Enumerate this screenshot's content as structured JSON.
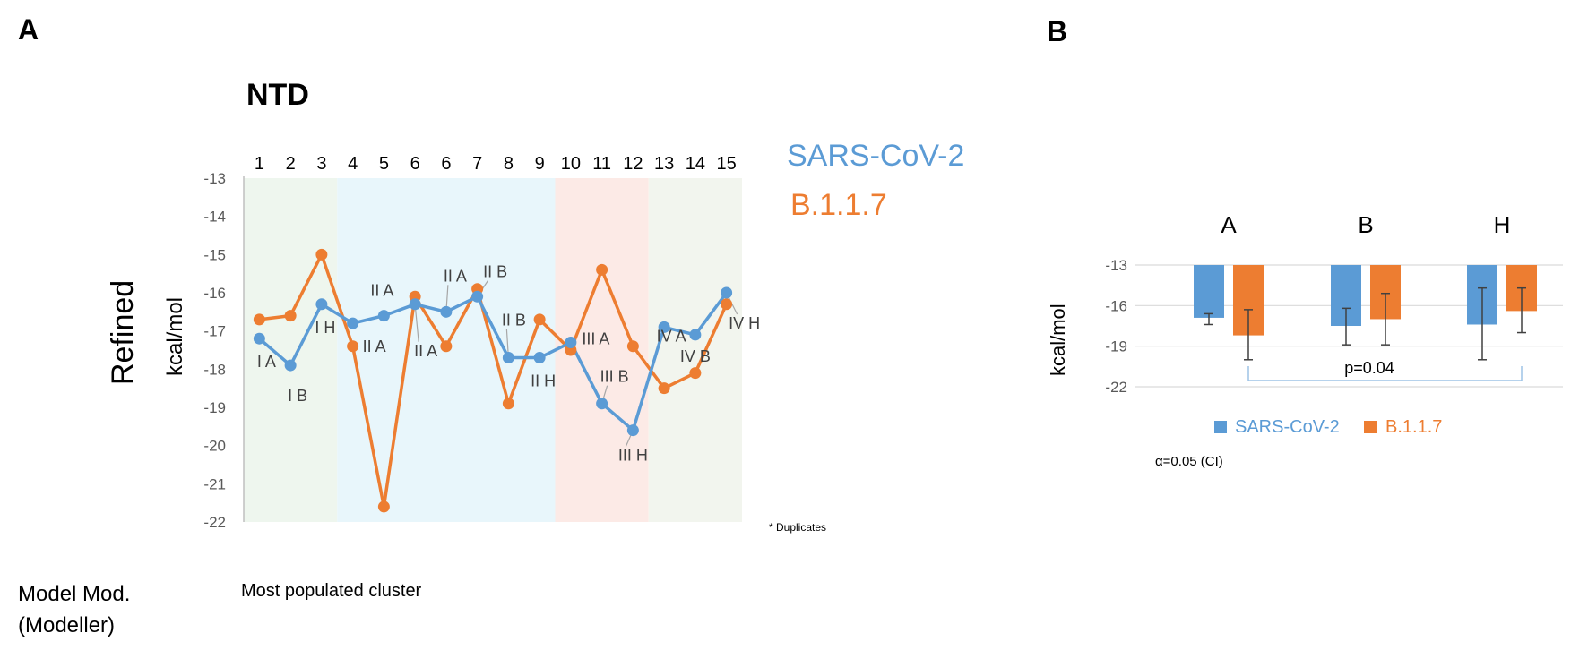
{
  "panels": {
    "a": {
      "label": "A",
      "title": "NTD",
      "ylabel_main": "Refined",
      "ylabel_unit": "kcal/mol",
      "footer_left_line1": "Model Mod.",
      "footer_left_line2": "(Modeller)",
      "footer_caption": "Most populated cluster",
      "footnote": "* Duplicates",
      "asterisk": "*"
    },
    "b": {
      "label": "B",
      "ylabel": "kcal/mol",
      "alpha_note": "α=0.05 (CI)",
      "pvalue": "p=0.04"
    }
  },
  "colors": {
    "sars": "#5B9BD5",
    "b117": "#ED7D31",
    "region_I": "#EEF6EE",
    "region_II": "#E8F6FB",
    "region_III": "#FCEAE6",
    "region_IV": "#F2F5EE",
    "grid": "#D9D9D9",
    "axis_text": "#595959",
    "error_bar": "#404040",
    "bracket": "#9DC3E6"
  },
  "chart_data": [
    {
      "type": "line",
      "title": "NTD",
      "xlabel": "",
      "ylabel": "kcal/mol",
      "categories": [
        "1",
        "2",
        "3",
        "4",
        "5",
        "6",
        "6",
        "7",
        "8",
        "9",
        "10",
        "11",
        "12",
        "13",
        "14",
        "15"
      ],
      "yticks": [
        -13,
        -14,
        -15,
        -16,
        -17,
        -18,
        -19,
        -20,
        -21,
        -22
      ],
      "ylim": [
        -22,
        -13
      ],
      "regions": [
        {
          "name": "I",
          "start": 0,
          "end": 3
        },
        {
          "name": "II",
          "start": 3,
          "end": 10
        },
        {
          "name": "III",
          "start": 10,
          "end": 13
        },
        {
          "name": "IV",
          "start": 13,
          "end": 16
        }
      ],
      "series": [
        {
          "name": "SARS-CoV-2",
          "values": [
            -17.2,
            -17.9,
            -16.3,
            -16.8,
            -16.6,
            -16.3,
            -16.5,
            -16.1,
            -17.7,
            -17.7,
            -17.3,
            -18.9,
            -19.6,
            -16.9,
            -17.1,
            -16.0
          ]
        },
        {
          "name": "B.1.1.7",
          "values": [
            -16.7,
            -16.6,
            -15.0,
            -17.4,
            -21.6,
            -16.1,
            -17.4,
            -15.9,
            -18.9,
            -16.7,
            -17.5,
            -15.4,
            -17.4,
            -18.5,
            -18.1,
            -16.3
          ]
        }
      ],
      "annotations": [
        "I A",
        "I B",
        "I H",
        "II A",
        "II A",
        "II A",
        "II A",
        "II B",
        "II B",
        "II H",
        "III A",
        "III B",
        "III H",
        "IV A",
        "IV B",
        "IV H"
      ],
      "legend": [
        "SARS-CoV-2",
        "B.1.1.7"
      ]
    },
    {
      "type": "bar",
      "title": "",
      "xlabel": "",
      "ylabel": "kcal/mol",
      "categories": [
        "A",
        "B",
        "H"
      ],
      "yticks": [
        -13,
        -16,
        -19,
        -22
      ],
      "ylim": [
        -22,
        -13
      ],
      "series": [
        {
          "name": "SARS-CoV-2",
          "values": [
            -16.9,
            -17.5,
            -17.4
          ],
          "err_low": [
            -17.4,
            -18.9,
            -20.0
          ],
          "err_high": [
            -16.6,
            -16.2,
            -14.7
          ]
        },
        {
          "name": "B.1.1.7",
          "values": [
            -18.2,
            -17.0,
            -16.4
          ],
          "err_low": [
            -20.0,
            -18.9,
            -18.0
          ],
          "err_high": [
            -16.3,
            -15.1,
            -14.7
          ]
        }
      ],
      "legend": [
        "SARS-CoV-2",
        "B.1.1.7"
      ]
    }
  ]
}
